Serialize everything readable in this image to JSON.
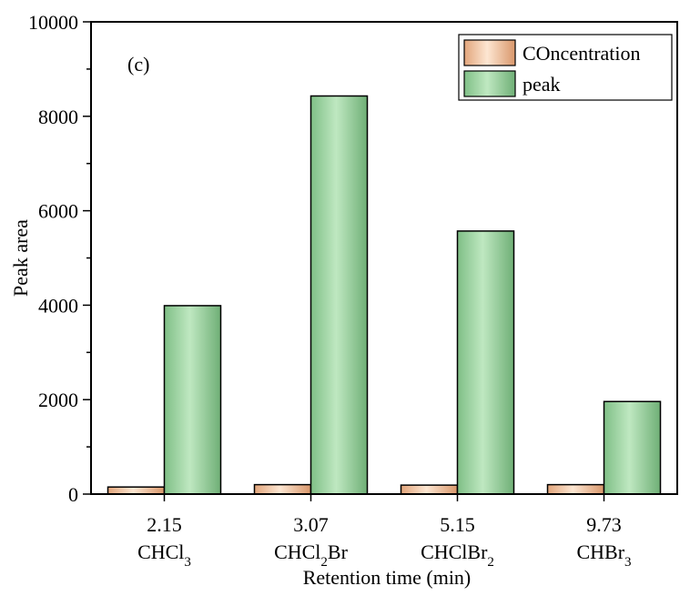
{
  "chart_data": {
    "type": "bar",
    "panel_label": "(c)",
    "title": "",
    "xlabel": "Retention time (min)",
    "ylabel": "Peak area",
    "ylim": [
      0,
      10000
    ],
    "yticks": [
      0,
      2000,
      4000,
      6000,
      8000,
      10000
    ],
    "grid": false,
    "legend_position": "top-right",
    "categories": [
      {
        "time": "2.15",
        "compound": {
          "base": "CHCl",
          "sub": "3",
          "tail": "",
          "sub2": ""
        }
      },
      {
        "time": "3.07",
        "compound": {
          "base": "CHCl",
          "sub": "2",
          "tail": "Br",
          "sub2": ""
        }
      },
      {
        "time": "5.15",
        "compound": {
          "base": "CHClBr",
          "sub": "2",
          "tail": "",
          "sub2": ""
        }
      },
      {
        "time": "9.73",
        "compound": {
          "base": "CHBr",
          "sub": "3",
          "tail": "",
          "sub2": ""
        }
      }
    ],
    "series": [
      {
        "name": "COncentration",
        "color": "#f5c9a3",
        "values": [
          150,
          200,
          190,
          200
        ]
      },
      {
        "name": "peak",
        "color": "#a8dcaa",
        "values": [
          3990,
          8430,
          5570,
          1960
        ]
      }
    ]
  }
}
